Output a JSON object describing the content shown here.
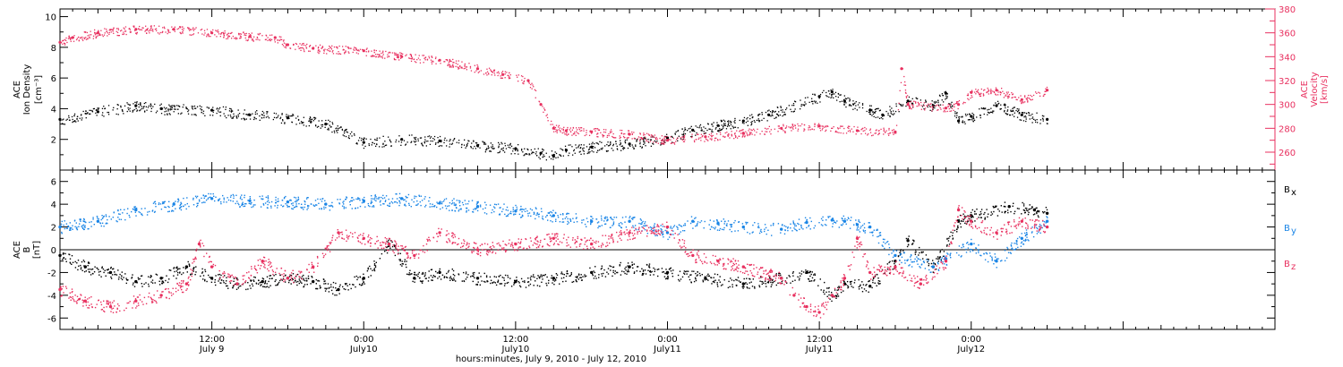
{
  "colors": {
    "black": "#000000",
    "pink": "#e8305f",
    "blue": "#1a85e6"
  },
  "x_axis": {
    "title": "hours:minutes, July  9, 2010 - July 12, 2010",
    "range_hours": [
      0,
      96
    ],
    "ticks": [
      {
        "h": 12,
        "time": "12:00",
        "day": "July 9"
      },
      {
        "h": 24,
        "time": "0:00",
        "day": "July10"
      },
      {
        "h": 36,
        "time": "12:00",
        "day": "July10"
      },
      {
        "h": 48,
        "time": "0:00",
        "day": "July11"
      },
      {
        "h": 60,
        "time": "12:00",
        "day": "July11"
      },
      {
        "h": 72,
        "time": "0:00",
        "day": "July12"
      }
    ]
  },
  "chart_data": [
    {
      "type": "scatter",
      "ylabel_left": [
        "ACE",
        "Ion Density",
        "[cm⁻³]"
      ],
      "ylabel_right": [
        "ACE",
        "Velocity",
        "[km/s]"
      ],
      "ylim_left": [
        0,
        10.5
      ],
      "yticks_left": [
        2,
        4,
        6,
        8,
        10
      ],
      "ylim_right": [
        245,
        380
      ],
      "yticks_right": [
        260,
        280,
        300,
        320,
        340,
        360,
        380
      ],
      "series": [
        {
          "axis": "left",
          "color": "#000000",
          "x": [
            0,
            3,
            6,
            8,
            12,
            15,
            18,
            21,
            24,
            27,
            30,
            33,
            36,
            38,
            39,
            40,
            42,
            45,
            48,
            50,
            52,
            54,
            56,
            60,
            61,
            62,
            64,
            65,
            67,
            69,
            70,
            71,
            72,
            74,
            76,
            78
          ],
          "y": [
            3.3,
            3.8,
            4.2,
            4.0,
            3.9,
            3.6,
            3.4,
            3.0,
            1.8,
            2.0,
            1.9,
            1.6,
            1.4,
            1.1,
            0.9,
            1.3,
            1.5,
            1.7,
            2.1,
            2.6,
            2.9,
            3.2,
            3.6,
            4.8,
            5.1,
            4.5,
            3.9,
            3.6,
            4.5,
            4.2,
            5.0,
            3.2,
            3.5,
            4.2,
            3.6,
            3.3
          ]
        },
        {
          "axis": "right",
          "color": "#e8305f",
          "x": [
            0,
            1,
            3,
            6,
            9,
            12,
            15,
            17,
            18,
            20,
            24,
            27,
            30,
            33,
            35,
            37,
            38,
            39,
            40,
            42,
            45,
            48,
            51,
            54,
            57,
            60,
            63,
            66,
            66.5,
            67,
            70,
            71,
            72,
            74,
            76,
            78
          ],
          "y": [
            352,
            356,
            360,
            363,
            363,
            360,
            357,
            356,
            350,
            347,
            345,
            340,
            337,
            330,
            325,
            320,
            300,
            280,
            278,
            277,
            275,
            270,
            273,
            276,
            280,
            282,
            278,
            277,
            330,
            300,
            297,
            300,
            310,
            312,
            304,
            312
          ]
        }
      ]
    },
    {
      "type": "scatter",
      "ylabel_left": [
        "ACE",
        "B",
        "[nT]"
      ],
      "ylim_left": [
        -7,
        7
      ],
      "yticks_left": [
        -6,
        -4,
        -2,
        0,
        2,
        4,
        6
      ],
      "legend": [
        {
          "label": "B",
          "sub": "x",
          "color": "#000000"
        },
        {
          "label": "B",
          "sub": "y",
          "color": "#1a85e6"
        },
        {
          "label": "B",
          "sub": "z",
          "color": "#e8305f"
        }
      ],
      "series": [
        {
          "name": "Bx",
          "color": "#000000",
          "x": [
            0,
            2,
            4,
            6,
            8,
            10,
            12,
            14,
            16,
            18,
            20,
            22,
            24,
            26,
            28,
            30,
            33,
            36,
            39,
            42,
            45,
            48,
            51,
            54,
            57,
            59,
            61,
            62,
            64,
            66,
            67,
            69,
            71,
            72,
            75,
            77,
            78
          ],
          "y": [
            -0.5,
            -1.5,
            -2.0,
            -2.8,
            -2.5,
            -1.5,
            -2.5,
            -3.0,
            -2.8,
            -2.5,
            -2.8,
            -3.5,
            -2.5,
            0.5,
            -2.5,
            -2.0,
            -2.5,
            -2.8,
            -2.5,
            -2.0,
            -1.5,
            -2.0,
            -2.5,
            -3.0,
            -2.5,
            -2.0,
            -4.0,
            -3.0,
            -3.2,
            -1.0,
            0.8,
            -1.5,
            2.5,
            3.0,
            3.8,
            3.5,
            3.2
          ]
        },
        {
          "name": "By",
          "color": "#1a85e6",
          "x": [
            0,
            3,
            6,
            9,
            12,
            15,
            18,
            21,
            24,
            27,
            30,
            33,
            36,
            39,
            42,
            45,
            48,
            50,
            52,
            54,
            57,
            59,
            61,
            62,
            63,
            64,
            66,
            69,
            70,
            72,
            74,
            76,
            78
          ],
          "y": [
            2.0,
            2.5,
            3.5,
            4.0,
            4.5,
            4.3,
            4.2,
            4.0,
            4.3,
            4.5,
            4.1,
            3.8,
            3.4,
            3.0,
            2.5,
            2.5,
            1.5,
            2.5,
            2.3,
            2.0,
            1.8,
            2.4,
            2.6,
            2.5,
            2.2,
            2.0,
            -0.5,
            -1.5,
            -0.8,
            0.5,
            -1.0,
            1.0,
            2.5
          ]
        },
        {
          "name": "Bz",
          "color": "#e8305f",
          "x": [
            0,
            2,
            4,
            6,
            8,
            10,
            11,
            12,
            14,
            16,
            18,
            20,
            22,
            24,
            26,
            28,
            30,
            33,
            36,
            39,
            42,
            45,
            48,
            50,
            52,
            54,
            57,
            58,
            59,
            60,
            61,
            62,
            63,
            64,
            66,
            68,
            70,
            71,
            72,
            74,
            76,
            78
          ],
          "y": [
            -3.5,
            -4.5,
            -5.0,
            -4.5,
            -4.0,
            -3.0,
            0.5,
            -1.5,
            -3.0,
            -1.0,
            -2.5,
            -1.5,
            1.5,
            1.0,
            0.5,
            -0.5,
            1.5,
            0.0,
            0.5,
            1.0,
            0.5,
            1.5,
            2.0,
            -0.5,
            -1.0,
            -1.5,
            -2.5,
            -4.0,
            -5.0,
            -5.5,
            -4.0,
            -2.5,
            1.0,
            -2.0,
            -1.5,
            -3.0,
            -1.0,
            3.5,
            2.5,
            1.5,
            2.5,
            2.0
          ]
        }
      ]
    }
  ]
}
